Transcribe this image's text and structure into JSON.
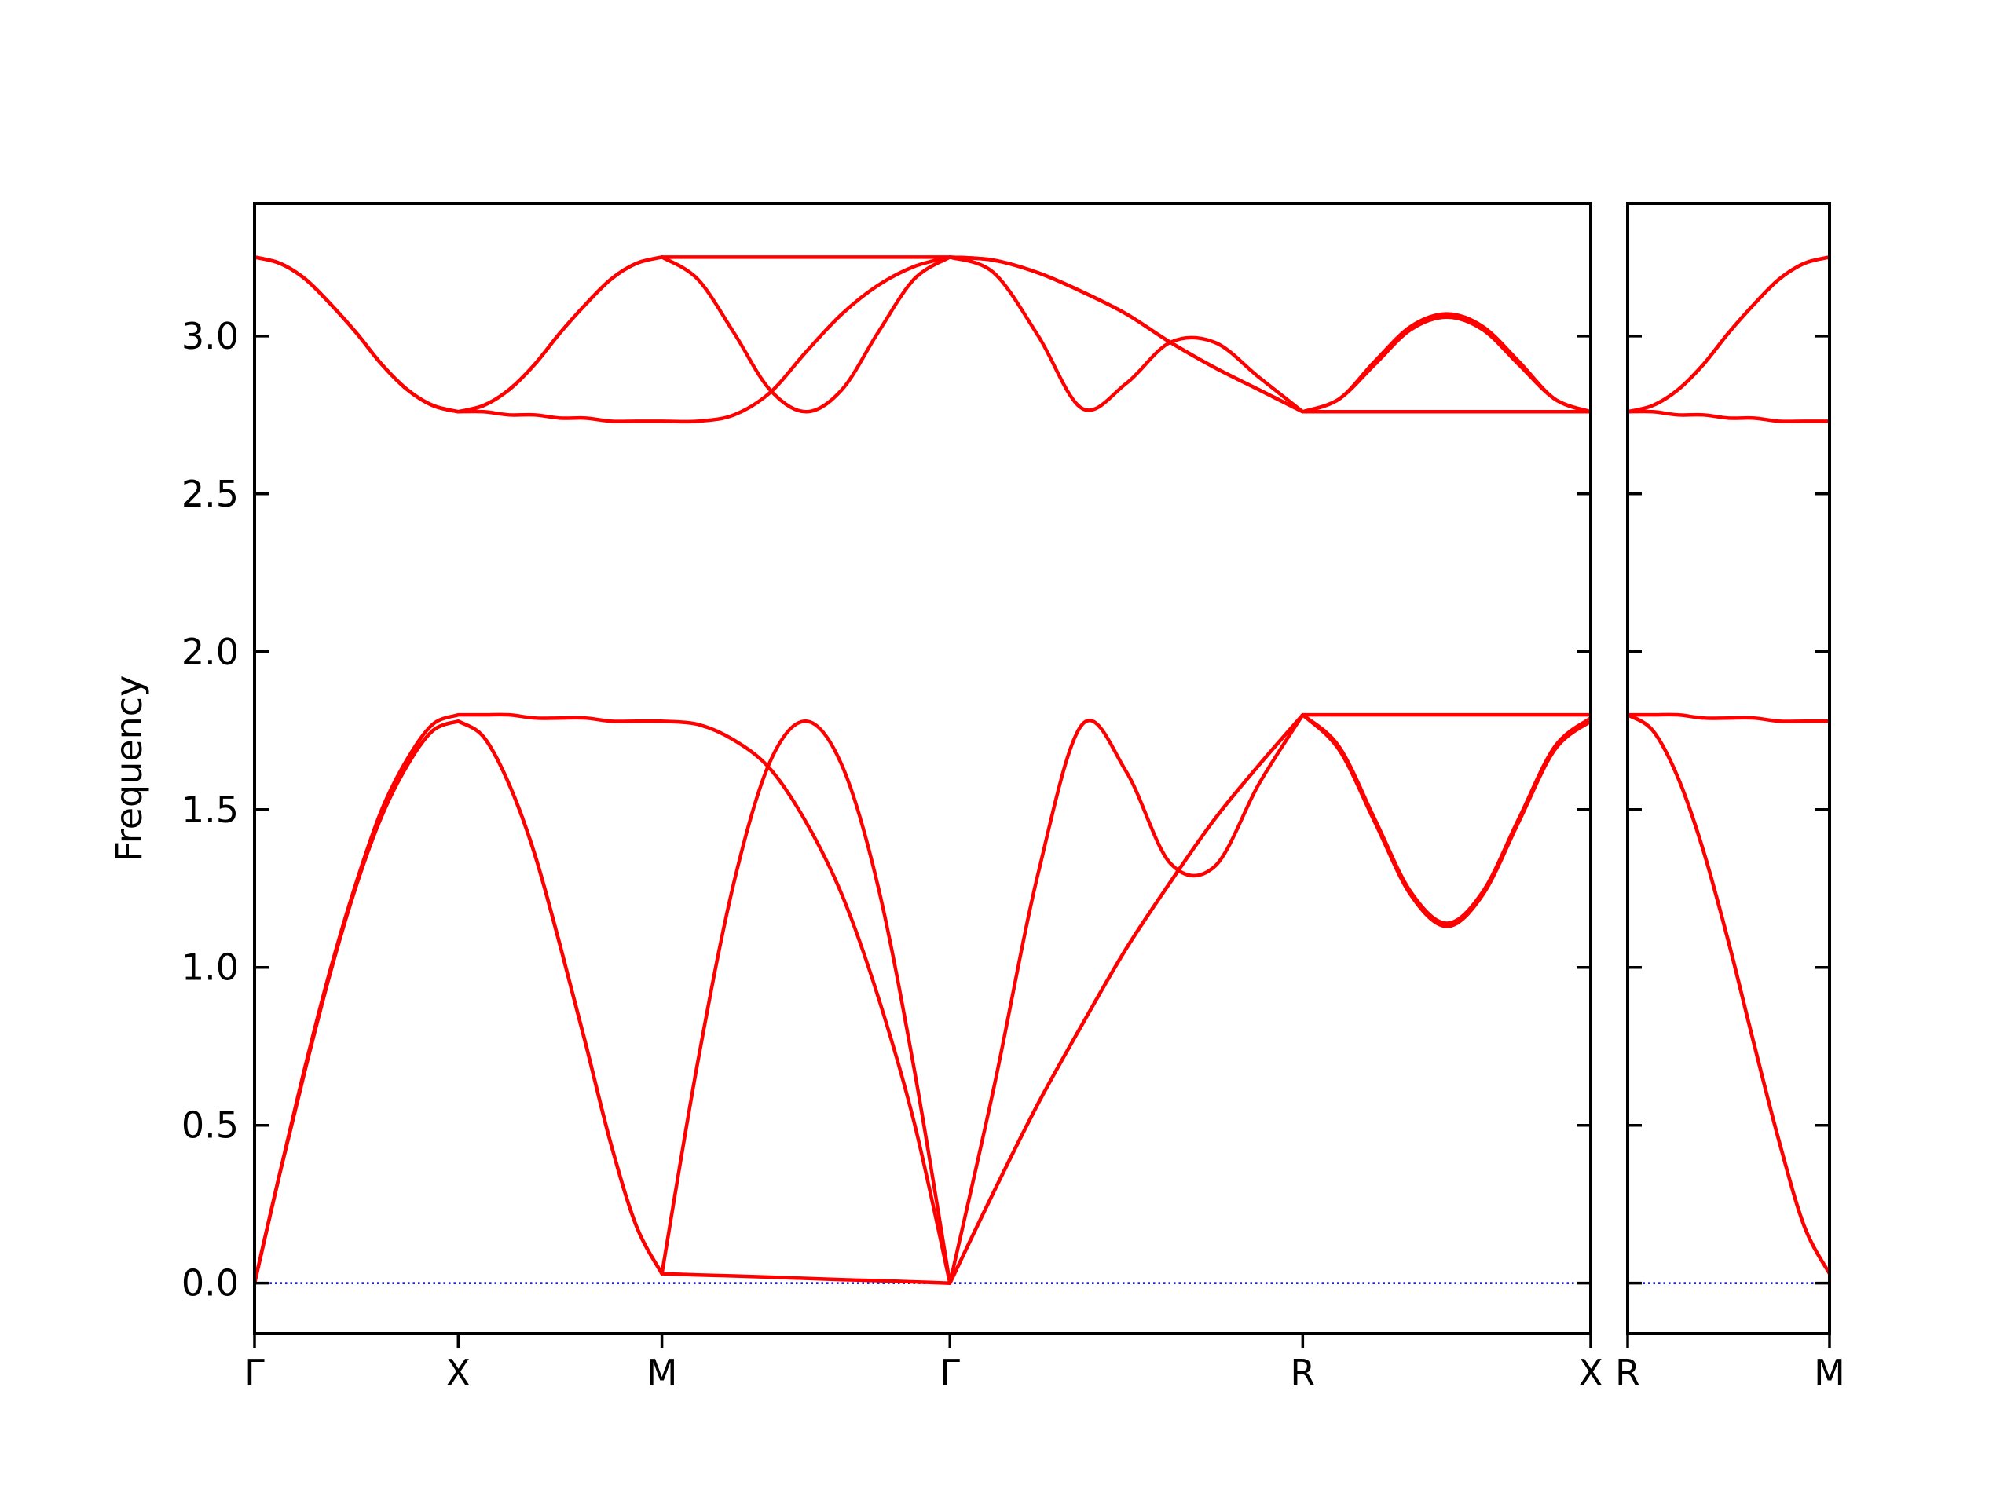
{
  "chart_data": [
    {
      "type": "line",
      "ylabel": "Frequency",
      "x": [
        0,
        0.0625,
        0.125,
        0.1875,
        0.25,
        0.3125,
        0.375,
        0.4375,
        0.5,
        0.5625,
        0.625,
        0.6875,
        0.75,
        0.8125,
        0.875,
        0.9375,
        1,
        1.088,
        1.177,
        1.265,
        1.354,
        1.442,
        1.53,
        1.619,
        1.707,
        1.815,
        1.924,
        2.032,
        2.14,
        2.248,
        2.357,
        2.465,
        2.573,
        2.662,
        2.75,
        2.838,
        2.927,
        3.015,
        3.103,
        3.192,
        3.28
      ],
      "series": [
        {
          "color": "#ff0000",
          "values": [
            0,
            0.35,
            0.68,
            0.99,
            1.26,
            1.48,
            1.64,
            1.75,
            1.78,
            1.73,
            1.58,
            1.36,
            1.07,
            0.76,
            0.44,
            0.18,
            0.03,
            0.026,
            0.023,
            0.019,
            0.015,
            0.011,
            0.008,
            0.004,
            0,
            0.29,
            0.57,
            0.82,
            1.06,
            1.27,
            1.47,
            1.64,
            1.8,
            1.8,
            1.8,
            1.8,
            1.8,
            1.8,
            1.8,
            1.8,
            1.8
          ]
        },
        {
          "color": "#ff0000",
          "values": [
            0,
            0.35,
            0.68,
            0.99,
            1.26,
            1.48,
            1.64,
            1.75,
            1.78,
            1.73,
            1.58,
            1.36,
            1.07,
            0.76,
            0.44,
            0.18,
            0.03,
            0.7,
            1.27,
            1.65,
            1.78,
            1.64,
            1.26,
            0.68,
            0,
            0.62,
            1.3,
            1.77,
            1.62,
            1.33,
            1.32,
            1.58,
            1.8,
            1.69,
            1.46,
            1.23,
            1.13,
            1.23,
            1.46,
            1.69,
            1.78
          ]
        },
        {
          "color": "#ff0000",
          "values": [
            0,
            0.35,
            0.69,
            1.0,
            1.27,
            1.5,
            1.66,
            1.77,
            1.8,
            1.8,
            1.8,
            1.79,
            1.79,
            1.79,
            1.78,
            1.78,
            1.78,
            1.77,
            1.72,
            1.63,
            1.46,
            1.23,
            0.91,
            0.51,
            0,
            0.29,
            0.57,
            0.82,
            1.06,
            1.27,
            1.47,
            1.64,
            1.8,
            1.7,
            1.47,
            1.24,
            1.14,
            1.24,
            1.47,
            1.7,
            1.79
          ]
        },
        {
          "color": "#ff0000",
          "values": [
            3.25,
            3.23,
            3.18,
            3.1,
            3.01,
            2.91,
            2.83,
            2.78,
            2.76,
            2.78,
            2.83,
            2.91,
            3.01,
            3.1,
            3.18,
            3.23,
            3.25,
            3.18,
            3.01,
            2.83,
            2.76,
            2.83,
            3.01,
            3.18,
            3.25,
            3.2,
            3.0,
            2.77,
            2.85,
            2.98,
            2.98,
            2.87,
            2.76,
            2.8,
            2.91,
            3.02,
            3.06,
            3.02,
            2.91,
            2.8,
            2.76
          ]
        },
        {
          "color": "#ff0000",
          "values": [
            3.25,
            3.23,
            3.18,
            3.1,
            3.01,
            2.91,
            2.83,
            2.78,
            2.76,
            2.78,
            2.83,
            2.91,
            3.01,
            3.1,
            3.18,
            3.23,
            3.25,
            3.25,
            3.25,
            3.25,
            3.25,
            3.25,
            3.25,
            3.25,
            3.25,
            3.24,
            3.2,
            3.14,
            3.07,
            2.98,
            2.9,
            2.83,
            2.76,
            2.8,
            2.92,
            3.03,
            3.07,
            3.03,
            2.92,
            2.8,
            2.76
          ]
        },
        {
          "color": "#ff0000",
          "values": [
            3.25,
            3.23,
            3.18,
            3.1,
            3.01,
            2.91,
            2.83,
            2.78,
            2.76,
            2.76,
            2.75,
            2.75,
            2.74,
            2.74,
            2.73,
            2.73,
            2.73,
            2.73,
            2.75,
            2.82,
            2.95,
            3.07,
            3.16,
            3.22,
            3.25,
            3.24,
            3.2,
            3.14,
            3.07,
            2.98,
            2.9,
            2.83,
            2.76,
            2.76,
            2.76,
            2.76,
            2.76,
            2.76,
            2.76,
            2.76,
            2.76
          ]
        }
      ],
      "hlines": [
        {
          "y": 0,
          "color": "#0000cd",
          "style": "dotted"
        }
      ],
      "xlim": [
        0,
        3.28
      ],
      "ylim": [
        -0.16,
        3.42
      ],
      "xticks": [
        {
          "value": 0,
          "label": "Γ"
        },
        {
          "value": 0.5,
          "label": "X"
        },
        {
          "value": 1,
          "label": "M"
        },
        {
          "value": 1.707,
          "label": "Γ"
        },
        {
          "value": 2.573,
          "label": "R"
        },
        {
          "value": 3.28,
          "label": "X"
        }
      ],
      "yticks": [
        {
          "value": 0,
          "label": "0.0"
        },
        0.5,
        {
          "value": 1,
          "label": "1.0"
        },
        1.5,
        {
          "value": 2,
          "label": "2.0"
        },
        2.5,
        {
          "value": 3,
          "label": "3.0"
        }
      ],
      "ytick_labels": true
    },
    {
      "type": "line",
      "x": [
        0,
        0.0625,
        0.125,
        0.1875,
        0.25,
        0.3125,
        0.375,
        0.4375,
        0.5
      ],
      "series": [
        {
          "color": "#ff0000",
          "values": [
            1.8,
            1.8,
            1.8,
            1.79,
            1.79,
            1.79,
            1.78,
            1.78,
            1.78
          ]
        },
        {
          "color": "#ff0000",
          "values": [
            1.8,
            1.75,
            1.6,
            1.37,
            1.08,
            0.76,
            0.45,
            0.18,
            0.03
          ]
        },
        {
          "color": "#ff0000",
          "values": [
            1.8,
            1.75,
            1.6,
            1.37,
            1.08,
            0.76,
            0.45,
            0.18,
            0.03
          ]
        },
        {
          "color": "#ff0000",
          "values": [
            2.76,
            2.78,
            2.83,
            2.91,
            3.01,
            3.1,
            3.18,
            3.23,
            3.25
          ]
        },
        {
          "color": "#ff0000",
          "values": [
            2.76,
            2.78,
            2.83,
            2.91,
            3.01,
            3.1,
            3.18,
            3.23,
            3.25
          ]
        },
        {
          "color": "#ff0000",
          "values": [
            2.76,
            2.76,
            2.75,
            2.75,
            2.74,
            2.74,
            2.73,
            2.73,
            2.73
          ]
        }
      ],
      "hlines": [
        {
          "y": 0,
          "color": "#0000cd",
          "style": "dotted"
        }
      ],
      "xlim": [
        0,
        0.5
      ],
      "ylim": [
        -0.16,
        3.42
      ],
      "xticks": [
        {
          "value": 0,
          "label": "R"
        },
        {
          "value": 0.5,
          "label": "M"
        }
      ],
      "yticks": [
        0,
        0.5,
        1,
        1.5,
        2,
        2.5,
        3
      ],
      "ytick_labels": false
    }
  ]
}
